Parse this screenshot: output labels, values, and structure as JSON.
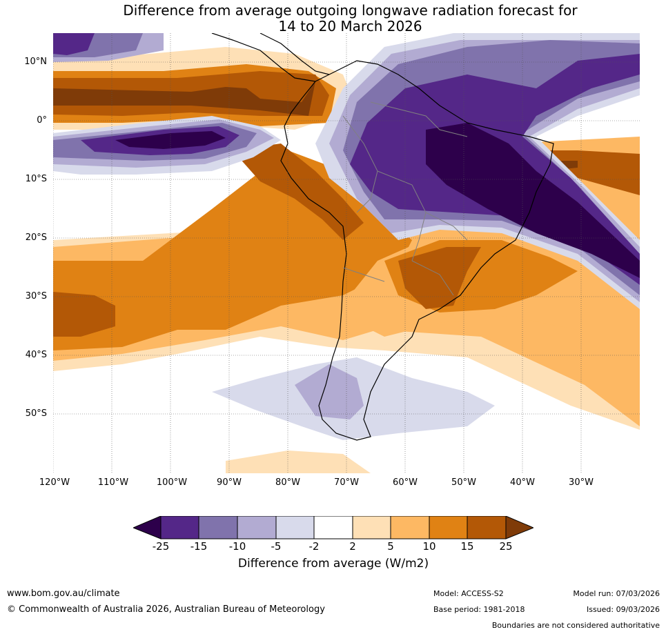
{
  "title_line1": "Difference from average outgoing longwave radiation forecast for",
  "title_line2": "14 to 20 March 2026",
  "map": {
    "lat_labels": [
      "10°N",
      "0°",
      "10°S",
      "20°S",
      "30°S",
      "40°S",
      "50°S"
    ],
    "lon_labels": [
      "120°W",
      "110°W",
      "100°W",
      "90°W",
      "80°W",
      "70°W",
      "60°W",
      "50°W",
      "40°W",
      "30°W"
    ],
    "colors": {
      "lt_minus25": "#2d004b",
      "m25_m15": "#542788",
      "m15_m10": "#8073ac",
      "m10_m5": "#b2abd2",
      "m5_m2": "#d8daeb",
      "m2_2": "#ffffff",
      "p2_5": "#fee0b6",
      "p5_10": "#fdb863",
      "p10_15": "#e08214",
      "p15_25": "#b35806",
      "gt25": "#7f3b08",
      "coast": "#000000",
      "border": "#808080"
    }
  },
  "colorbar": {
    "ticks": [
      "-25",
      "-15",
      "-10",
      "-5",
      "-2",
      "2",
      "5",
      "10",
      "15",
      "25"
    ],
    "label": "Difference from average (W/m2)"
  },
  "footer": {
    "website": "www.bom.gov.au/climate",
    "copyright": "© Commonwealth of Australia 2026, Australian Bureau of Meteorology",
    "model": "Model: ACCESS-S2",
    "base_period": "Base period: 1981-2018",
    "model_run": "Model run: 07/03/2026",
    "issued": "Issued: 09/03/2026",
    "disclaimer": "Boundaries are not considered authoritative"
  }
}
